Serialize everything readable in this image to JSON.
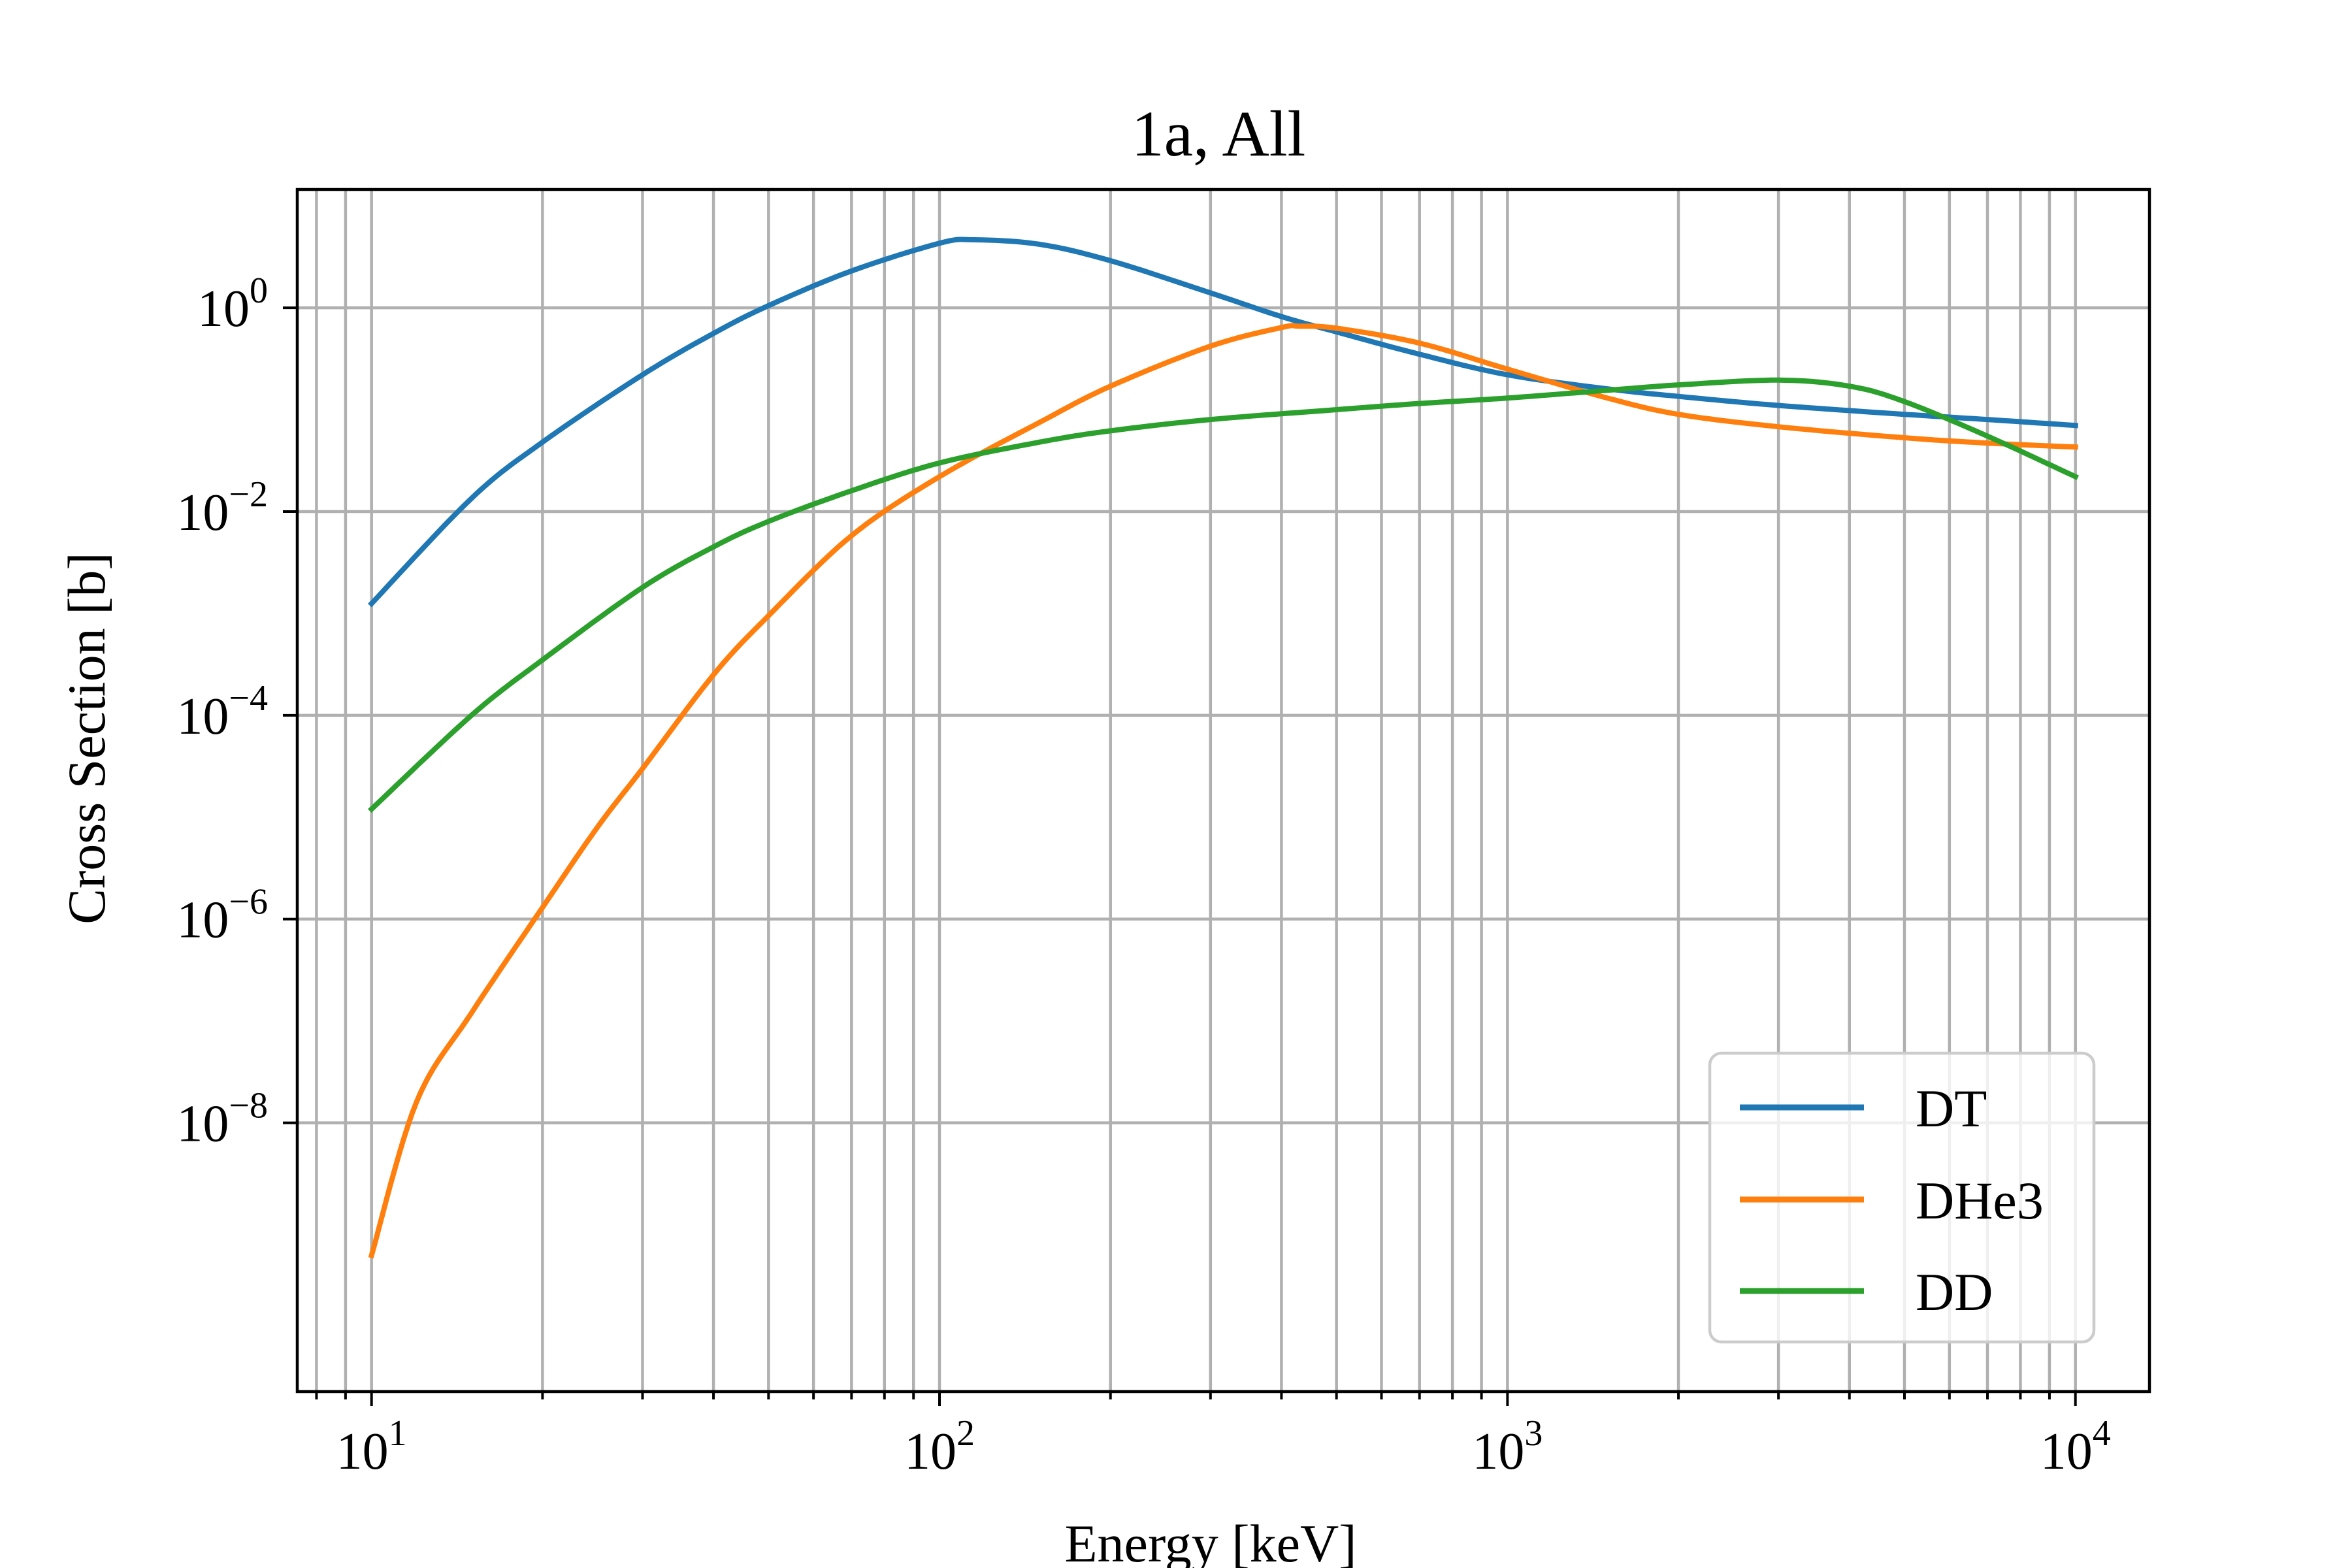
{
  "chart_data": {
    "type": "line",
    "title": "1a, All",
    "xlabel": "Energy [keV]",
    "ylabel": "Cross Section [b]",
    "xscale": "log",
    "yscale": "log",
    "xlim": [
      7.4,
      13500
    ],
    "ylim": [
      2.3e-11,
      14.5
    ],
    "grid": true,
    "grid_minor_x": true,
    "legend_position": "lower-right",
    "x_ticks": [
      {
        "base": "10",
        "exp": "1",
        "value": 10
      },
      {
        "base": "10",
        "exp": "2",
        "value": 100
      },
      {
        "base": "10",
        "exp": "3",
        "value": 1000
      },
      {
        "base": "10",
        "exp": "4",
        "value": 10000
      }
    ],
    "y_ticks": [
      {
        "base": "10",
        "exp": "0",
        "value": 1
      },
      {
        "base": "10",
        "exp": "−2",
        "value": 0.01
      },
      {
        "base": "10",
        "exp": "−4",
        "value": 0.0001
      },
      {
        "base": "10",
        "exp": "−6",
        "value": 1e-06
      },
      {
        "base": "10",
        "exp": "−8",
        "value": 1e-08
      }
    ],
    "series": [
      {
        "name": "DT",
        "color": "#1f77b4",
        "x": [
          10,
          15,
          20,
          30,
          40,
          50,
          70,
          100,
          115,
          150,
          200,
          300,
          400,
          500,
          700,
          1000,
          1500,
          2000,
          3000,
          5000,
          7000,
          10000
        ],
        "y": [
          0.00125,
          0.0135,
          0.048,
          0.22,
          0.56,
          1.05,
          2.3,
          4.3,
          4.65,
          4.2,
          2.9,
          1.4,
          0.82,
          0.58,
          0.35,
          0.22,
          0.16,
          0.135,
          0.11,
          0.09,
          0.08,
          0.07
        ]
      },
      {
        "name": "DHe3",
        "color": "#ff7f0e",
        "x": [
          10,
          12,
          15,
          20,
          25,
          30,
          40,
          50,
          70,
          100,
          150,
          200,
          300,
          400,
          430,
          500,
          700,
          1000,
          1500,
          2000,
          3000,
          5000,
          7000,
          10000
        ],
        "y": [
          5e-10,
          1.6e-08,
          1.2e-07,
          1.3e-06,
          8e-06,
          3e-05,
          0.00025,
          0.00095,
          0.0058,
          0.022,
          0.075,
          0.17,
          0.42,
          0.64,
          0.66,
          0.63,
          0.45,
          0.25,
          0.13,
          0.09,
          0.068,
          0.053,
          0.047,
          0.043
        ]
      },
      {
        "name": "DD",
        "color": "#2ca02c",
        "x": [
          10,
          15,
          20,
          30,
          40,
          50,
          70,
          100,
          150,
          200,
          300,
          500,
          700,
          1000,
          1500,
          2000,
          3000,
          4000,
          5000,
          7000,
          10000
        ],
        "y": [
          1.2e-05,
          0.0001,
          0.00035,
          0.0018,
          0.0045,
          0.008,
          0.016,
          0.03,
          0.048,
          0.062,
          0.08,
          0.1,
          0.115,
          0.13,
          0.155,
          0.175,
          0.195,
          0.17,
          0.12,
          0.055,
          0.022
        ]
      }
    ]
  }
}
